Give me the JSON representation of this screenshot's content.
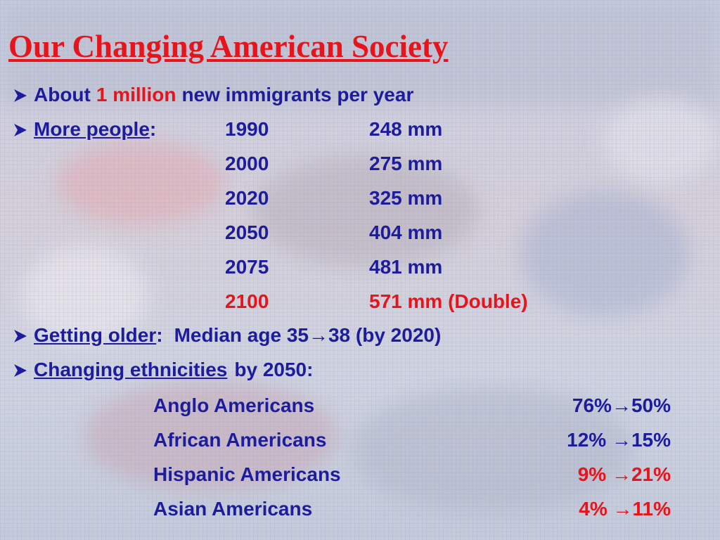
{
  "title": "Our Changing American Society",
  "bullets": [
    {
      "prefix": "About",
      "highlight": "1 million",
      "suffix": "new immigrants per year"
    },
    {
      "label": "More people",
      "colon": ":",
      "rows": [
        [
          "1990",
          "248 mm"
        ],
        [
          "2000",
          "275 mm"
        ],
        [
          "2020",
          "325 mm"
        ],
        [
          "2050",
          "404 mm"
        ],
        [
          "2075",
          "481 mm"
        ],
        [
          "2100",
          "571 mm (Double)"
        ]
      ]
    },
    {
      "label": "Getting older",
      "colon": ":",
      "text": "Median age 35→38 (by 2020)"
    },
    {
      "label": "Changing ethnicities",
      "text": "by 2050:",
      "rows": [
        [
          "Anglo Americans",
          "76%→50%"
        ],
        [
          "African Americans",
          "12% →15%"
        ],
        [
          "Hispanic Americans",
          "9% →21%"
        ],
        [
          "Asian Americans",
          "4% →11%"
        ]
      ]
    }
  ]
}
